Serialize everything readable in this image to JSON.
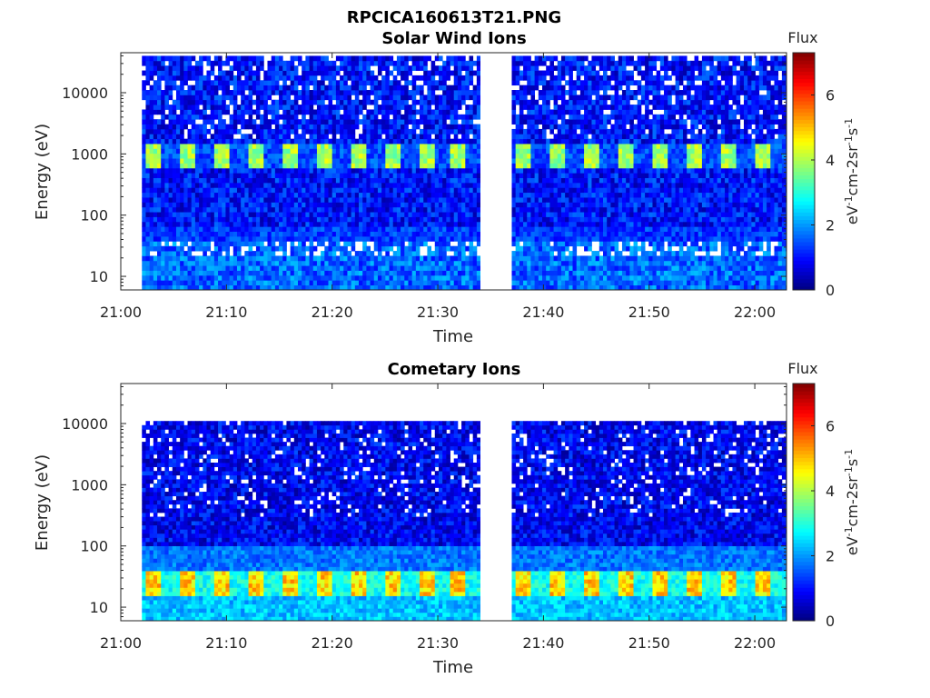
{
  "figure": {
    "title": "RPCICA160613T21.PNG"
  },
  "colorbar": {
    "title": "Flux",
    "label": "eV-1cm-2sr-1s-1",
    "ticks": [
      "0",
      "2",
      "4",
      "6"
    ],
    "range": [
      0,
      7.3
    ],
    "colormap": "jet"
  },
  "chart_data": [
    {
      "type": "heatmap",
      "title": "Solar Wind Ions",
      "xlabel": "Time",
      "ylabel": "Energy (eV)",
      "yscale": "log",
      "ylim": [
        6,
        45000
      ],
      "xlim": [
        "21:00",
        "22:03"
      ],
      "xticks": [
        "21:00",
        "21:10",
        "21:20",
        "21:30",
        "21:40",
        "21:50",
        "22:00"
      ],
      "yticks": [
        "10",
        "100",
        "1000",
        "10000"
      ],
      "data_time_ranges": [
        [
          "21:02",
          "21:34"
        ],
        [
          "21:37",
          "22:03"
        ]
      ],
      "energy_top": 40000,
      "features": [
        {
          "band": "solar wind beam",
          "energy_range": [
            550,
            1600
          ],
          "peak_flux": 4.5,
          "pulse_period_min": 3.2
        },
        {
          "band": "low energy",
          "energy_range": [
            6,
            40
          ],
          "peak_flux": 2.2
        }
      ]
    },
    {
      "type": "heatmap",
      "title": "Cometary Ions",
      "xlabel": "Time",
      "ylabel": "Energy (eV)",
      "yscale": "log",
      "ylim": [
        6,
        45000
      ],
      "xlim": [
        "21:00",
        "22:03"
      ],
      "xticks": [
        "21:00",
        "21:10",
        "21:20",
        "21:30",
        "21:40",
        "21:50",
        "22:00"
      ],
      "yticks": [
        "10",
        "100",
        "1000",
        "10000"
      ],
      "data_time_ranges": [
        [
          "21:02",
          "21:34"
        ],
        [
          "21:37",
          "22:03"
        ]
      ],
      "energy_top": 11000,
      "features": [
        {
          "band": "cometary ions",
          "energy_range": [
            15,
            40
          ],
          "peak_flux": 5.5,
          "pulse_period_min": 3.2
        },
        {
          "band": "low energy",
          "energy_range": [
            6,
            15
          ],
          "peak_flux": 2.8
        }
      ]
    }
  ]
}
